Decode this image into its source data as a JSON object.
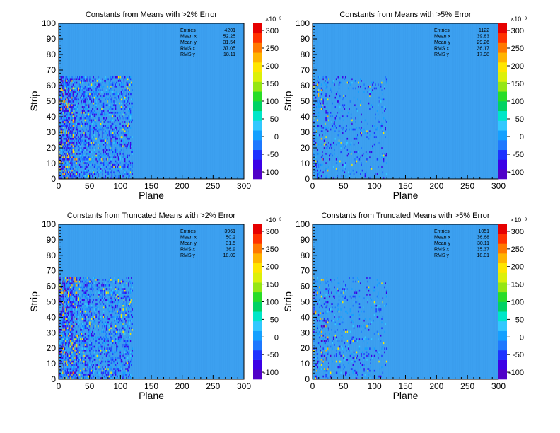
{
  "chart_data": [
    {
      "type": "heatmap",
      "title": "Constants from Means with >2% Error",
      "xlabel": "Plane",
      "ylabel": "Strip",
      "xlim": [
        0,
        300
      ],
      "ylim": [
        0,
        100
      ],
      "xticks": [
        "0",
        "50",
        "100",
        "150",
        "200",
        "250",
        "300"
      ],
      "yticks": [
        "0",
        "10",
        "20",
        "30",
        "40",
        "50",
        "60",
        "70",
        "80",
        "90",
        "100"
      ],
      "z_scale": "×10⁻³",
      "zticks": [
        "-100",
        "-50",
        "0",
        "50",
        "100",
        "150",
        "200",
        "250",
        "300"
      ],
      "zlim": [
        -0.12,
        0.32
      ],
      "background_value": 0,
      "populated_region": {
        "x": [
          0,
          120
        ],
        "y": [
          0,
          65
        ]
      },
      "density": "high",
      "stats": [
        {
          "label": "Entries",
          "value": "4201"
        },
        {
          "label": "Mean x",
          "value": "52.25"
        },
        {
          "label": "Mean y",
          "value": "31.54"
        },
        {
          "label": "RMS x",
          "value": "37.05"
        },
        {
          "label": "RMS y",
          "value": "18.11"
        }
      ]
    },
    {
      "type": "heatmap",
      "title": "Constants from Means with >5% Error",
      "xlabel": "Plane",
      "ylabel": "Strip",
      "xlim": [
        0,
        300
      ],
      "ylim": [
        0,
        100
      ],
      "xticks": [
        "0",
        "50",
        "100",
        "150",
        "200",
        "250",
        "300"
      ],
      "yticks": [
        "0",
        "10",
        "20",
        "30",
        "40",
        "50",
        "60",
        "70",
        "80",
        "90",
        "100"
      ],
      "z_scale": "×10⁻³",
      "zticks": [
        "-100",
        "-50",
        "0",
        "50",
        "100",
        "150",
        "200",
        "250",
        "300"
      ],
      "zlim": [
        -0.12,
        0.32
      ],
      "background_value": 0,
      "populated_region": {
        "x": [
          0,
          120
        ],
        "y": [
          0,
          65
        ]
      },
      "density": "low",
      "stats": [
        {
          "label": "Entries",
          "value": "1122"
        },
        {
          "label": "Mean x",
          "value": "39.83"
        },
        {
          "label": "Mean y",
          "value": "29.26"
        },
        {
          "label": "RMS x",
          "value": "36.17"
        },
        {
          "label": "RMS y",
          "value": "17.98"
        }
      ]
    },
    {
      "type": "heatmap",
      "title": "Constants from Truncated Means with >2% Error",
      "xlabel": "Plane",
      "ylabel": "Strip",
      "xlim": [
        0,
        300
      ],
      "ylim": [
        0,
        100
      ],
      "xticks": [
        "0",
        "50",
        "100",
        "150",
        "200",
        "250",
        "300"
      ],
      "yticks": [
        "0",
        "10",
        "20",
        "30",
        "40",
        "50",
        "60",
        "70",
        "80",
        "90",
        "100"
      ],
      "z_scale": "×10⁻³",
      "zticks": [
        "-100",
        "-50",
        "0",
        "50",
        "100",
        "150",
        "200",
        "250",
        "300"
      ],
      "zlim": [
        -0.12,
        0.32
      ],
      "background_value": 0,
      "populated_region": {
        "x": [
          0,
          120
        ],
        "y": [
          0,
          65
        ]
      },
      "density": "high",
      "stats": [
        {
          "label": "Entries",
          "value": "3961"
        },
        {
          "label": "Mean x",
          "value": "50.2"
        },
        {
          "label": "Mean y",
          "value": "31.5"
        },
        {
          "label": "RMS x",
          "value": "36.9"
        },
        {
          "label": "RMS y",
          "value": "18.09"
        }
      ]
    },
    {
      "type": "heatmap",
      "title": "Constants from Truncated Means with >5% Error",
      "xlabel": "Plane",
      "ylabel": "Strip",
      "xlim": [
        0,
        300
      ],
      "ylim": [
        0,
        100
      ],
      "xticks": [
        "0",
        "50",
        "100",
        "150",
        "200",
        "250",
        "300"
      ],
      "yticks": [
        "0",
        "10",
        "20",
        "30",
        "40",
        "50",
        "60",
        "70",
        "80",
        "90",
        "100"
      ],
      "z_scale": "×10⁻³",
      "zticks": [
        "-100",
        "-50",
        "0",
        "50",
        "100",
        "150",
        "200",
        "250",
        "300"
      ],
      "zlim": [
        -0.12,
        0.32
      ],
      "background_value": 0,
      "populated_region": {
        "x": [
          0,
          120
        ],
        "y": [
          0,
          65
        ]
      },
      "density": "low",
      "stats": [
        {
          "label": "Entries",
          "value": "1051"
        },
        {
          "label": "Mean x",
          "value": "36.68"
        },
        {
          "label": "Mean y",
          "value": "30.11"
        },
        {
          "label": "RMS x",
          "value": "35.37"
        },
        {
          "label": "RMS y",
          "value": "18.01"
        }
      ]
    }
  ]
}
